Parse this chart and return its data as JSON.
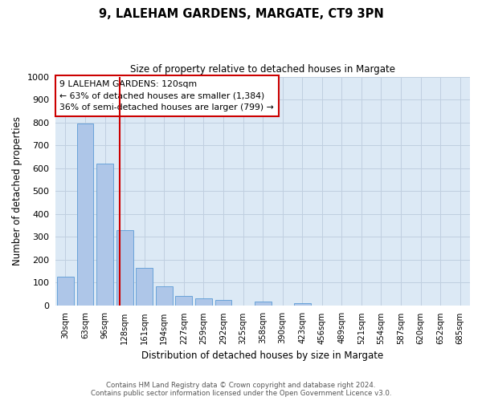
{
  "title": "9, LALEHAM GARDENS, MARGATE, CT9 3PN",
  "subtitle": "Size of property relative to detached houses in Margate",
  "xlabel": "Distribution of detached houses by size in Margate",
  "ylabel": "Number of detached properties",
  "bar_labels": [
    "30sqm",
    "63sqm",
    "96sqm",
    "128sqm",
    "161sqm",
    "194sqm",
    "227sqm",
    "259sqm",
    "292sqm",
    "325sqm",
    "358sqm",
    "390sqm",
    "423sqm",
    "456sqm",
    "489sqm",
    "521sqm",
    "554sqm",
    "587sqm",
    "620sqm",
    "652sqm",
    "685sqm"
  ],
  "bar_values": [
    125,
    795,
    620,
    330,
    165,
    82,
    42,
    30,
    22,
    0,
    15,
    0,
    8,
    0,
    0,
    0,
    0,
    0,
    0,
    0,
    0
  ],
  "bar_color": "#aec6e8",
  "bar_edge_color": "#5b9bd5",
  "property_line_color": "#cc0000",
  "annotation_title": "9 LALEHAM GARDENS: 120sqm",
  "annotation_line1": "← 63% of detached houses are smaller (1,384)",
  "annotation_line2": "36% of semi-detached houses are larger (799) →",
  "annotation_box_color": "#cc0000",
  "ylim": [
    0,
    1000
  ],
  "yticks": [
    0,
    100,
    200,
    300,
    400,
    500,
    600,
    700,
    800,
    900,
    1000
  ],
  "background_color": "#ffffff",
  "ax_background_color": "#dce9f5",
  "grid_color": "#c0cfe0",
  "footer_line1": "Contains HM Land Registry data © Crown copyright and database right 2024.",
  "footer_line2": "Contains public sector information licensed under the Open Government Licence v3.0."
}
